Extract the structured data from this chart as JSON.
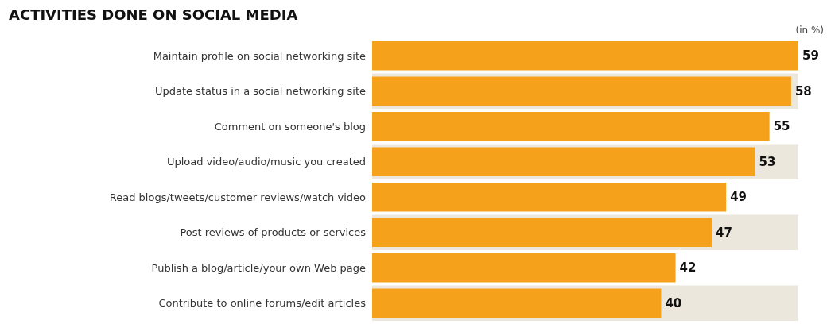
{
  "chart_data": {
    "type": "bar",
    "orientation": "horizontal",
    "title": "ACTIVITIES DONE ON SOCIAL MEDIA",
    "annotations": [
      "(in %)"
    ],
    "categories": [
      "Maintain profile on social networking site",
      "Update status in a social networking site",
      "Comment on someone's blog",
      "Upload video/audio/music you created",
      "Read blogs/tweets/customer reviews/watch video",
      "Post reviews of products or services",
      "Publish a blog/article/your own Web page",
      "Contribute to online forums/edit articles"
    ],
    "values": [
      59,
      58,
      55,
      53,
      49,
      47,
      42,
      40
    ],
    "color": "#f5a11c",
    "data_labels": true
  }
}
